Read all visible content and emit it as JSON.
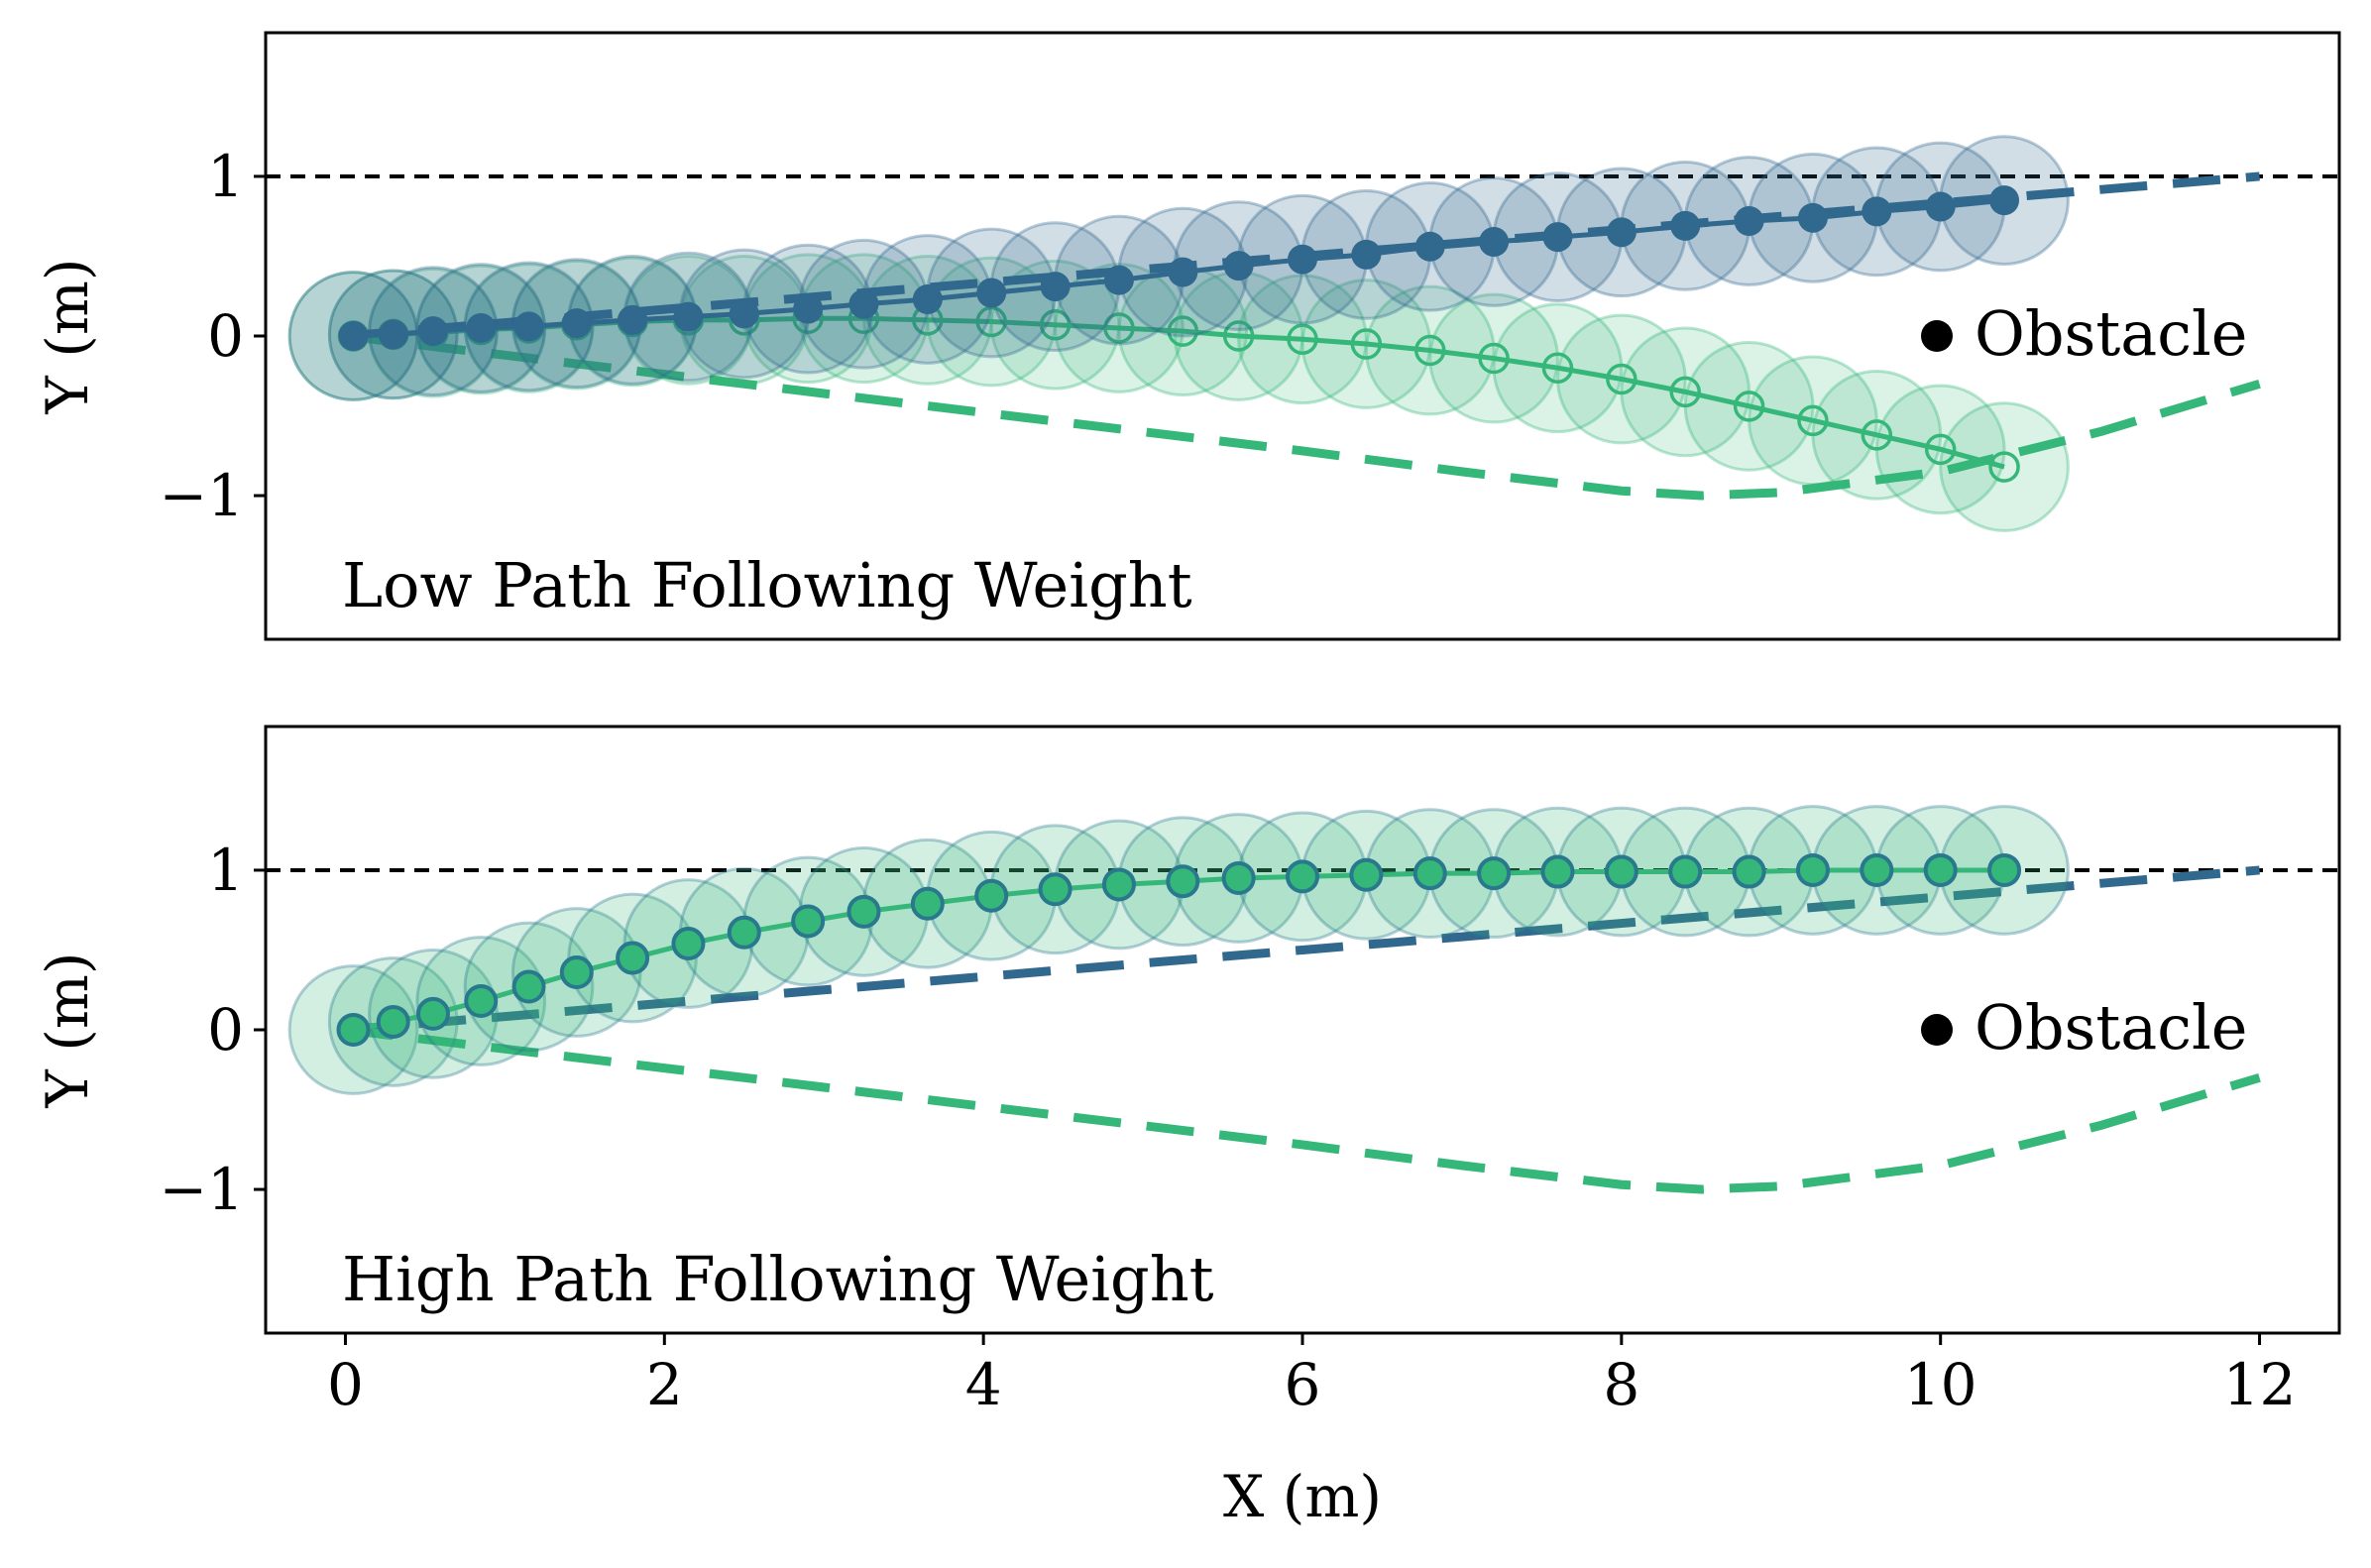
{
  "chart_data": [
    {
      "type": "line",
      "panel_label": "Low Path Following Weight",
      "xlabel": "",
      "ylabel": "Y (m)",
      "xlim": [
        -0.5,
        12.5
      ],
      "ylim": [
        -1.9,
        1.9
      ],
      "yticks": [
        1,
        0,
        -1
      ],
      "ytick_labels": [
        "1",
        "0",
        "−1"
      ],
      "xticks_visible": false,
      "reference_line": {
        "y": 1.0,
        "color": "#000000",
        "style": "dashed"
      },
      "obstacle": {
        "x": 10.0,
        "y": 0.0,
        "label": "Obstacle"
      },
      "series": [
        {
          "name": "blue reference path",
          "kind": "dashed-line",
          "color": "#31688e",
          "x": [
            0,
            1,
            2,
            3,
            4,
            5,
            6,
            7,
            8,
            9,
            10,
            11,
            12
          ],
          "y": [
            0.0,
            0.083,
            0.167,
            0.25,
            0.333,
            0.417,
            0.5,
            0.583,
            0.667,
            0.75,
            0.833,
            0.917,
            1.0
          ]
        },
        {
          "name": "green reference path",
          "kind": "dashed-line",
          "color": "#35b779",
          "x": [
            0,
            1,
            2,
            3,
            4,
            5,
            6,
            7,
            8,
            8.5,
            9,
            10,
            11,
            12
          ],
          "y": [
            0.0,
            -0.12,
            -0.24,
            -0.36,
            -0.48,
            -0.6,
            -0.72,
            -0.85,
            -0.97,
            -1.0,
            -0.98,
            -0.85,
            -0.6,
            -0.3
          ]
        },
        {
          "name": "blue robot trajectory",
          "kind": "trajectory",
          "marker": "filled",
          "color": "#31688e",
          "x": [
            0.05,
            0.3,
            0.55,
            0.85,
            1.15,
            1.45,
            1.8,
            2.15,
            2.5,
            2.9,
            3.25,
            3.65,
            4.05,
            4.45,
            4.85,
            5.25,
            5.6,
            6.0,
            6.4,
            6.8,
            7.2,
            7.6,
            8.0,
            8.4,
            8.8,
            9.2,
            9.6,
            10.0,
            10.4
          ],
          "y": [
            0.0,
            0.01,
            0.03,
            0.05,
            0.06,
            0.08,
            0.1,
            0.12,
            0.14,
            0.17,
            0.2,
            0.23,
            0.27,
            0.31,
            0.35,
            0.4,
            0.44,
            0.48,
            0.51,
            0.56,
            0.59,
            0.62,
            0.65,
            0.69,
            0.72,
            0.74,
            0.78,
            0.81,
            0.85
          ]
        },
        {
          "name": "green robot trajectory",
          "kind": "trajectory",
          "marker": "hollow",
          "color": "#35b779",
          "x": [
            0.05,
            0.3,
            0.55,
            0.85,
            1.15,
            1.45,
            1.8,
            2.15,
            2.5,
            2.9,
            3.25,
            3.65,
            4.05,
            4.45,
            4.85,
            5.25,
            5.6,
            6.0,
            6.4,
            6.8,
            7.2,
            7.6,
            8.0,
            8.4,
            8.8,
            9.2,
            9.6,
            10.0,
            10.4
          ],
          "y": [
            0.0,
            0.01,
            0.02,
            0.04,
            0.05,
            0.07,
            0.09,
            0.1,
            0.1,
            0.11,
            0.11,
            0.1,
            0.09,
            0.07,
            0.05,
            0.03,
            0.0,
            -0.02,
            -0.05,
            -0.09,
            -0.14,
            -0.2,
            -0.27,
            -0.35,
            -0.44,
            -0.53,
            -0.62,
            -0.71,
            -0.82
          ]
        }
      ]
    },
    {
      "type": "line",
      "panel_label": "High Path Following Weight",
      "xlabel": "X (m)",
      "ylabel": "Y (m)",
      "xlim": [
        -0.5,
        12.5
      ],
      "ylim": [
        -1.9,
        1.9
      ],
      "xticks": [
        0,
        2,
        4,
        6,
        8,
        10,
        12
      ],
      "xtick_labels": [
        "0",
        "2",
        "4",
        "6",
        "8",
        "10",
        "12"
      ],
      "yticks": [
        1,
        0,
        -1
      ],
      "ytick_labels": [
        "1",
        "0",
        "−1"
      ],
      "xticks_visible": true,
      "reference_line": {
        "y": 1.0,
        "color": "#000000",
        "style": "dashed"
      },
      "obstacle": {
        "x": 10.0,
        "y": 0.0,
        "label": "Obstacle"
      },
      "series": [
        {
          "name": "blue reference path",
          "kind": "dashed-line",
          "color": "#31688e",
          "x": [
            0,
            1,
            2,
            3,
            4,
            5,
            6,
            7,
            8,
            9,
            10,
            11,
            12
          ],
          "y": [
            0.0,
            0.083,
            0.167,
            0.25,
            0.333,
            0.417,
            0.5,
            0.583,
            0.667,
            0.75,
            0.833,
            0.917,
            1.0
          ]
        },
        {
          "name": "green reference path",
          "kind": "dashed-line",
          "color": "#35b779",
          "x": [
            0,
            1,
            2,
            3,
            4,
            5,
            6,
            7,
            8,
            8.5,
            9,
            10,
            11,
            12
          ],
          "y": [
            0.0,
            -0.12,
            -0.24,
            -0.36,
            -0.48,
            -0.6,
            -0.72,
            -0.85,
            -0.97,
            -1.0,
            -0.98,
            -0.85,
            -0.6,
            -0.3
          ]
        },
        {
          "name": "combined robot trajectory",
          "kind": "trajectory",
          "marker": "filled",
          "color": "#35b779",
          "edge_color": "#2a788e",
          "x": [
            0.05,
            0.3,
            0.55,
            0.85,
            1.15,
            1.45,
            1.8,
            2.15,
            2.5,
            2.9,
            3.25,
            3.65,
            4.05,
            4.45,
            4.85,
            5.25,
            5.6,
            6.0,
            6.4,
            6.8,
            7.2,
            7.6,
            8.0,
            8.4,
            8.8,
            9.2,
            9.6,
            10.0,
            10.4
          ],
          "y": [
            0.0,
            0.05,
            0.1,
            0.18,
            0.27,
            0.36,
            0.45,
            0.54,
            0.61,
            0.68,
            0.74,
            0.79,
            0.84,
            0.88,
            0.91,
            0.93,
            0.95,
            0.96,
            0.97,
            0.98,
            0.98,
            0.99,
            0.99,
            0.99,
            0.99,
            1.0,
            1.0,
            1.0,
            1.0
          ]
        }
      ]
    }
  ]
}
